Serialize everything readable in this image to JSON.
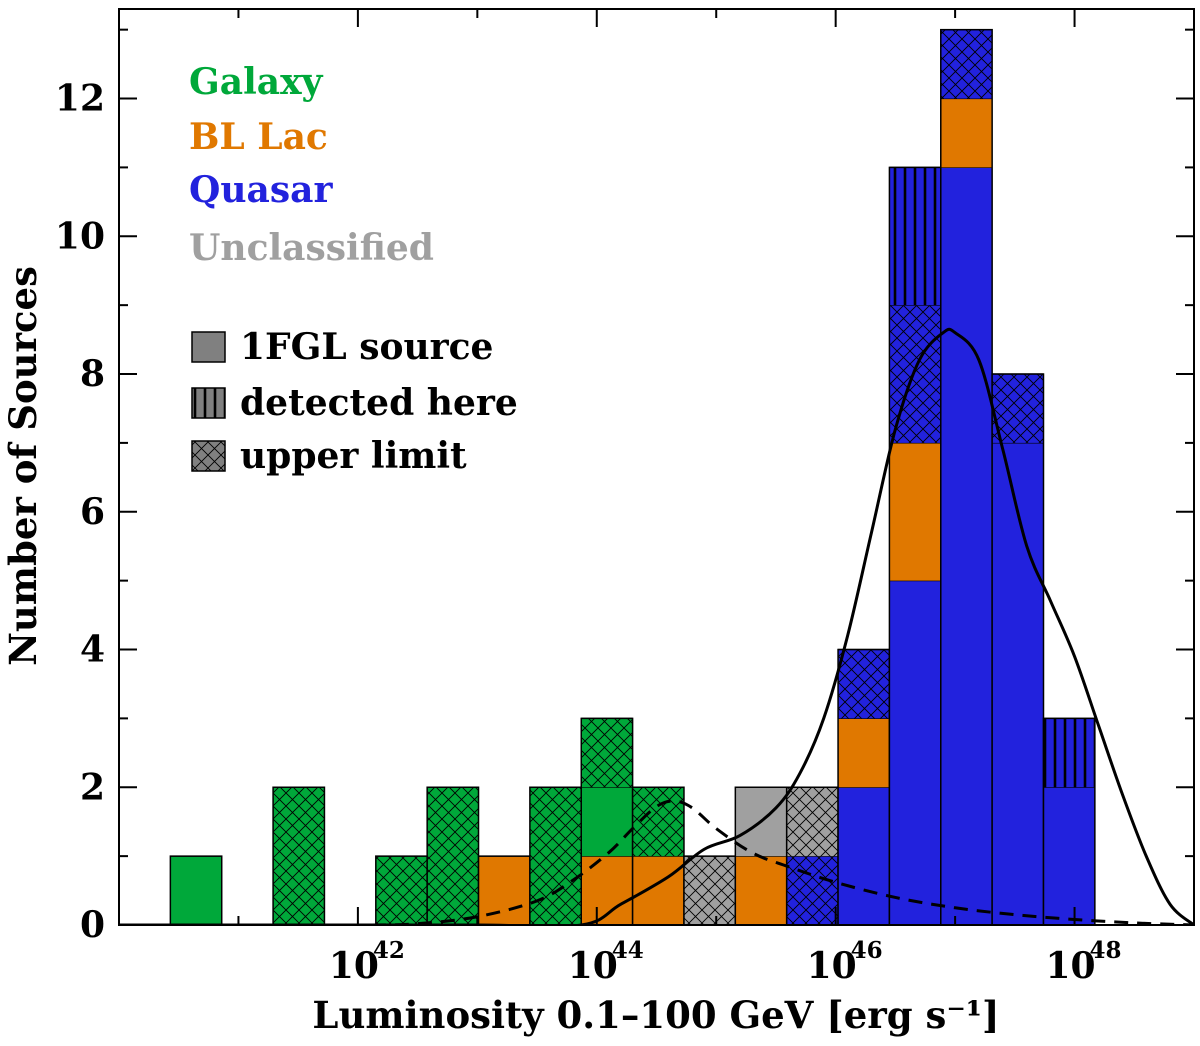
{
  "colors": {
    "galaxy": "#00a83a",
    "bllac": "#e07800",
    "quasar": "#2222dd",
    "unclassified": "#a0a0a0",
    "legend_swatch": "#808080"
  },
  "chart_data": {
    "type": "bar",
    "stacking": "stacked histogram",
    "xlabel": "Luminosity 0.1–100 GeV [erg s⁻¹]",
    "ylabel": "Number of Sources",
    "x_scale": "log10",
    "xlim_log10": [
      40.0,
      49.0
    ],
    "ylim": [
      0,
      13.3
    ],
    "bin_width_dex": 0.43,
    "x_ticks": [
      {
        "exp": 42,
        "base": "10",
        "sup": "42"
      },
      {
        "exp": 44,
        "base": "10",
        "sup": "44"
      },
      {
        "exp": 46,
        "base": "10",
        "sup": "46"
      },
      {
        "exp": 48,
        "base": "10",
        "sup": "48"
      }
    ],
    "y_ticks": [
      0,
      2,
      4,
      6,
      8,
      10,
      12
    ],
    "class_legend": [
      {
        "key": "galaxy",
        "label": "Galaxy"
      },
      {
        "key": "bllac",
        "label": "BL Lac"
      },
      {
        "key": "quasar",
        "label": "Quasar"
      },
      {
        "key": "unclassified",
        "label": "Unclassified"
      }
    ],
    "status_legend": [
      {
        "key": "source",
        "label": "1FGL source"
      },
      {
        "key": "detected",
        "label": "detected here"
      },
      {
        "key": "upper",
        "label": "upper limit"
      }
    ],
    "bars": [
      {
        "left_log10": 40.43,
        "segments": [
          {
            "cls": "galaxy",
            "status": "source",
            "count": 1
          }
        ]
      },
      {
        "left_log10": 41.29,
        "segments": [
          {
            "cls": "galaxy",
            "status": "upper",
            "count": 2
          }
        ]
      },
      {
        "left_log10": 42.15,
        "segments": [
          {
            "cls": "galaxy",
            "status": "upper",
            "count": 1
          }
        ]
      },
      {
        "left_log10": 42.58,
        "segments": [
          {
            "cls": "galaxy",
            "status": "upper",
            "count": 2
          }
        ]
      },
      {
        "left_log10": 43.01,
        "segments": [
          {
            "cls": "bllac",
            "status": "source",
            "count": 1
          }
        ]
      },
      {
        "left_log10": 43.44,
        "segments": [
          {
            "cls": "galaxy",
            "status": "upper",
            "count": 2
          }
        ]
      },
      {
        "left_log10": 43.87,
        "segments": [
          {
            "cls": "bllac",
            "status": "source",
            "count": 1
          },
          {
            "cls": "galaxy",
            "status": "source",
            "count": 1
          },
          {
            "cls": "galaxy",
            "status": "upper",
            "count": 1
          }
        ]
      },
      {
        "left_log10": 44.3,
        "segments": [
          {
            "cls": "bllac",
            "status": "source",
            "count": 1
          },
          {
            "cls": "galaxy",
            "status": "upper",
            "count": 1
          }
        ]
      },
      {
        "left_log10": 44.73,
        "segments": [
          {
            "cls": "unclassified",
            "status": "upper",
            "count": 1
          }
        ]
      },
      {
        "left_log10": 45.16,
        "segments": [
          {
            "cls": "bllac",
            "status": "source",
            "count": 1
          },
          {
            "cls": "unclassified",
            "status": "source",
            "count": 1
          }
        ]
      },
      {
        "left_log10": 45.59,
        "segments": [
          {
            "cls": "quasar",
            "status": "upper",
            "count": 1
          },
          {
            "cls": "unclassified",
            "status": "upper",
            "count": 1
          }
        ]
      },
      {
        "left_log10": 46.02,
        "segments": [
          {
            "cls": "quasar",
            "status": "source",
            "count": 2
          },
          {
            "cls": "bllac",
            "status": "source",
            "count": 1
          },
          {
            "cls": "quasar",
            "status": "upper",
            "count": 1
          }
        ]
      },
      {
        "left_log10": 46.45,
        "segments": [
          {
            "cls": "quasar",
            "status": "source",
            "count": 5
          },
          {
            "cls": "bllac",
            "status": "source",
            "count": 2
          },
          {
            "cls": "quasar",
            "status": "upper",
            "count": 2
          },
          {
            "cls": "quasar",
            "status": "detected",
            "count": 2
          }
        ]
      },
      {
        "left_log10": 46.88,
        "segments": [
          {
            "cls": "quasar",
            "status": "source",
            "count": 11
          },
          {
            "cls": "bllac",
            "status": "source",
            "count": 1
          },
          {
            "cls": "quasar",
            "status": "upper",
            "count": 1
          }
        ]
      },
      {
        "left_log10": 47.31,
        "segments": [
          {
            "cls": "quasar",
            "status": "source",
            "count": 7
          },
          {
            "cls": "quasar",
            "status": "upper",
            "count": 1
          }
        ]
      },
      {
        "left_log10": 47.74,
        "segments": [
          {
            "cls": "quasar",
            "status": "source",
            "count": 2
          },
          {
            "cls": "quasar",
            "status": "detected",
            "count": 1
          }
        ]
      }
    ],
    "curves": [
      {
        "name": "solid",
        "style": "solid",
        "x_log10": [
          40.0,
          41.5,
          43.0,
          43.87,
          44.2,
          44.6,
          44.9,
          45.2,
          45.5,
          45.7,
          45.9,
          46.1,
          46.3,
          46.5,
          46.7,
          46.9,
          47.0,
          47.2,
          47.4,
          47.6,
          47.8,
          48.0,
          48.2,
          48.4,
          48.6,
          48.8,
          49.0
        ],
        "y": [
          0,
          0,
          0,
          0,
          0.3,
          0.7,
          1.1,
          1.3,
          1.7,
          2.2,
          3.0,
          4.2,
          5.7,
          7.2,
          8.2,
          8.6,
          8.6,
          8.2,
          6.9,
          5.5,
          4.7,
          3.9,
          2.9,
          1.9,
          1.0,
          0.3,
          0
        ]
      },
      {
        "name": "dashed",
        "style": "dashed",
        "x_log10": [
          40.0,
          42.0,
          42.5,
          43.0,
          43.5,
          43.8,
          44.1,
          44.3,
          44.5,
          44.65,
          44.8,
          45.0,
          45.3,
          45.6,
          46.0,
          46.5,
          47.0,
          47.5,
          48.0,
          48.5,
          49.0
        ],
        "y": [
          0,
          0,
          0.02,
          0.12,
          0.35,
          0.65,
          1.05,
          1.4,
          1.72,
          1.8,
          1.7,
          1.4,
          1.05,
          0.85,
          0.62,
          0.4,
          0.25,
          0.15,
          0.08,
          0.03,
          0
        ]
      }
    ]
  }
}
